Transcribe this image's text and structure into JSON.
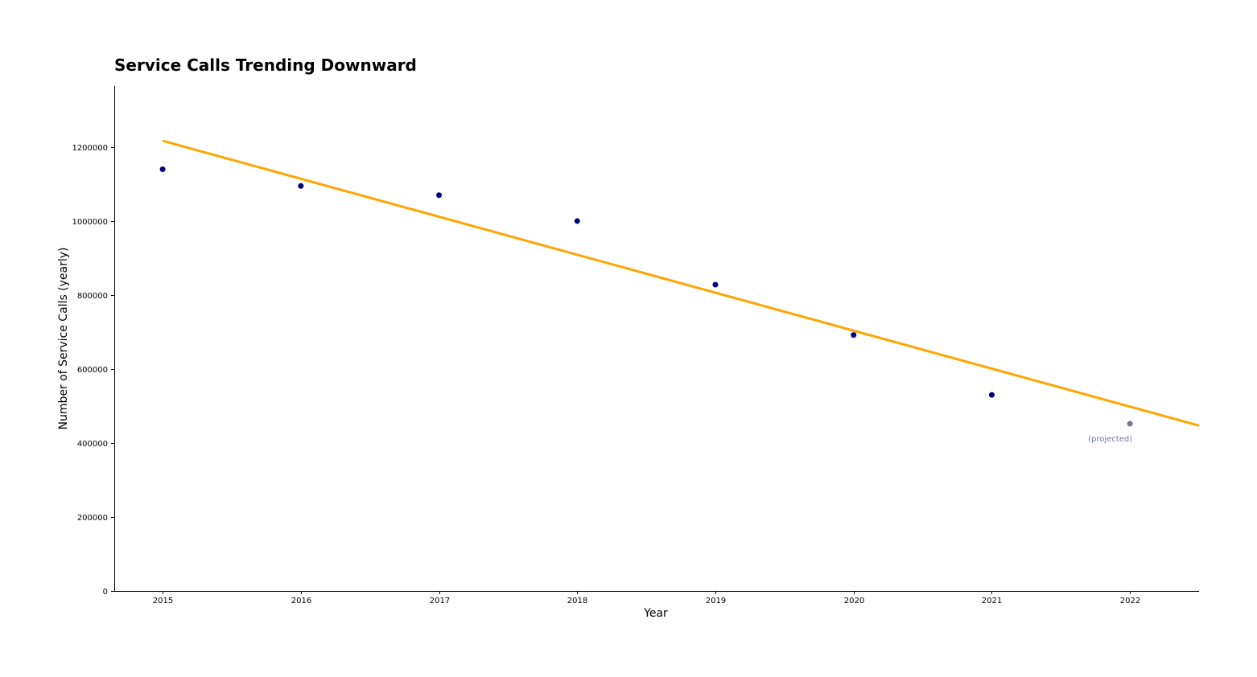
{
  "chart_data": {
    "type": "scatter",
    "title": "Service Calls Trending Downward",
    "xlabel": "Year",
    "ylabel": "Number of Service Calls (yearly)",
    "xlim": [
      2014.65,
      2022.5
    ],
    "ylim": [
      0,
      1365000
    ],
    "xticks": [
      2015,
      2016,
      2017,
      2018,
      2019,
      2020,
      2021,
      2022
    ],
    "yticks": [
      0,
      200000,
      400000,
      600000,
      800000,
      1000000,
      1200000
    ],
    "grid": false,
    "series": [
      {
        "x": [
          2015,
          2016,
          2017,
          2018,
          2019,
          2020,
          2021
        ],
        "y": [
          1140000,
          1095000,
          1070000,
          1000000,
          828000,
          692000,
          530000
        ],
        "color": "#000080"
      },
      {
        "x": [
          2022
        ],
        "y": [
          452000
        ],
        "color": "#6b7c93"
      }
    ],
    "trendline": {
      "x": [
        2015,
        2022.5
      ],
      "y": [
        1217000,
        447000
      ],
      "color": "#ffa500"
    },
    "annotations": [
      {
        "text": "(projected)",
        "x": 2022,
        "y": 452000,
        "color": "#6b7c93"
      }
    ]
  }
}
